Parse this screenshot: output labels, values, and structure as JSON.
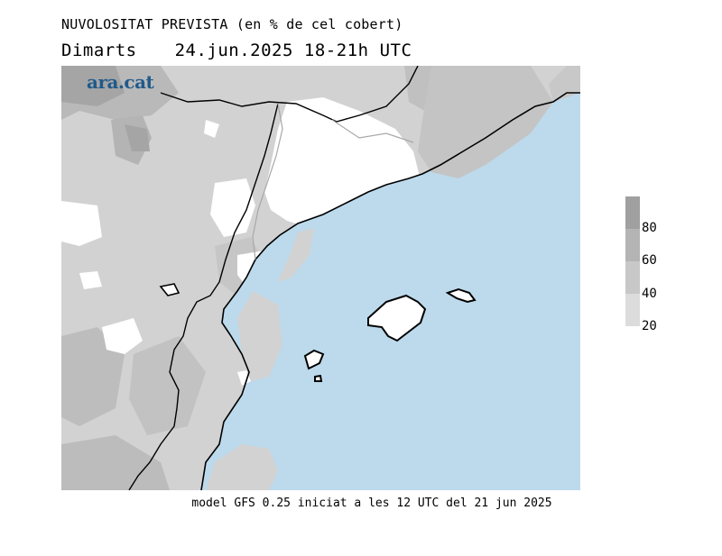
{
  "header": {
    "title": "NUVOLOSITAT PREVISTA (en % de cel cobert)",
    "day": "Dimarts",
    "date": "24.jun.2025",
    "hours": "18-21h",
    "timezone": "UTC"
  },
  "logo": {
    "text": "ara.cat",
    "color": "#1f5a8a"
  },
  "footer": {
    "caption": "model GFS 0.25 iniciat a les 12 UTC del 21 jun 2025"
  },
  "legend": {
    "labels": [
      "80",
      "60",
      "40",
      "20"
    ],
    "colors": [
      "#a0a0a0",
      "#b4b4b4",
      "#c8c8c8",
      "#dcdcdc"
    ]
  },
  "colors": {
    "sea": "#bcdaec",
    "clear": "#ffffff",
    "coast": "#000000",
    "border": "#a8a8a8"
  }
}
